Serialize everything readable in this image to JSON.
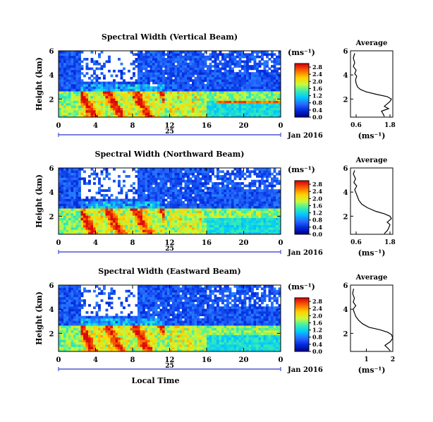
{
  "chart_data": [
    {
      "type": "heatmap",
      "title": "Spectral Width (Vertical Beam)",
      "ylabel": "Height (km)",
      "xlabel": "",
      "x_ticks": [
        "0",
        "4",
        "8",
        "12",
        "16",
        "20",
        "0"
      ],
      "x_sub_label": "25",
      "x_date_label": "Jan 2016",
      "y_ticks": [
        "2",
        "4",
        "6"
      ],
      "xlim_hours": [
        0,
        24
      ],
      "ylim_km": [
        0.5,
        6
      ],
      "colorbar": {
        "unit": "(ms⁻¹)",
        "ticks": [
          "0.0",
          "0.4",
          "0.8",
          "1.2",
          "1.6",
          "2.0",
          "2.4",
          "2.8"
        ],
        "range": [
          0.0,
          3.0
        ]
      },
      "seed": 11,
      "profile": {
        "title": "Average",
        "xlabel": "(ms⁻¹)",
        "x_ticks": [
          "0.6",
          "1.8"
        ],
        "x_tick_values": [
          0.6,
          1.8
        ],
        "xlim": [
          0.4,
          1.9
        ],
        "y_ticks": [
          "2",
          "4",
          "6"
        ],
        "ylim": [
          0.5,
          6
        ],
        "points": [
          [
            1.6,
            0.55
          ],
          [
            1.55,
            0.8
          ],
          [
            1.5,
            1.0
          ],
          [
            1.75,
            1.2
          ],
          [
            1.6,
            1.4
          ],
          [
            1.7,
            1.6
          ],
          [
            1.8,
            1.8
          ],
          [
            1.85,
            2.0
          ],
          [
            1.7,
            2.2
          ],
          [
            1.3,
            2.4
          ],
          [
            0.95,
            2.6
          ],
          [
            0.75,
            2.8
          ],
          [
            0.65,
            3.0
          ],
          [
            0.6,
            3.3
          ],
          [
            0.58,
            3.6
          ],
          [
            0.62,
            3.9
          ],
          [
            0.55,
            4.1
          ],
          [
            0.6,
            4.4
          ],
          [
            0.5,
            4.7
          ],
          [
            0.55,
            5.0
          ],
          [
            0.5,
            5.4
          ],
          [
            0.55,
            5.8
          ]
        ]
      }
    },
    {
      "type": "heatmap",
      "title": "Spectral Width (Northward Beam)",
      "ylabel": "Height (km)",
      "xlabel": "",
      "x_ticks": [
        "0",
        "4",
        "8",
        "12",
        "16",
        "20",
        "0"
      ],
      "x_sub_label": "25",
      "x_date_label": "Jan 2016",
      "y_ticks": [
        "2",
        "4",
        "6"
      ],
      "xlim_hours": [
        0,
        24
      ],
      "ylim_km": [
        0.5,
        6
      ],
      "colorbar": {
        "unit": "(ms⁻¹)",
        "ticks": [
          "0.0",
          "0.4",
          "0.8",
          "1.2",
          "1.6",
          "2.0",
          "2.4",
          "2.8"
        ],
        "range": [
          0.0,
          3.0
        ]
      },
      "seed": 23,
      "profile": {
        "title": "Average",
        "xlabel": "(ms⁻¹)",
        "x_ticks": [
          "0.6",
          "1.8"
        ],
        "x_tick_values": [
          0.6,
          1.8
        ],
        "xlim": [
          0.4,
          1.9
        ],
        "y_ticks": [
          "2",
          "4",
          "6"
        ],
        "ylim": [
          0.5,
          6
        ],
        "points": [
          [
            1.6,
            0.55
          ],
          [
            1.7,
            0.8
          ],
          [
            1.75,
            1.0
          ],
          [
            1.8,
            1.3
          ],
          [
            1.7,
            1.5
          ],
          [
            1.85,
            1.8
          ],
          [
            1.8,
            2.0
          ],
          [
            1.6,
            2.2
          ],
          [
            1.3,
            2.4
          ],
          [
            1.0,
            2.7
          ],
          [
            0.8,
            3.0
          ],
          [
            0.7,
            3.3
          ],
          [
            0.65,
            3.6
          ],
          [
            0.6,
            3.9
          ],
          [
            0.55,
            4.2
          ],
          [
            0.62,
            4.5
          ],
          [
            0.52,
            4.8
          ],
          [
            0.58,
            5.1
          ],
          [
            0.5,
            5.5
          ],
          [
            0.55,
            5.8
          ]
        ]
      }
    },
    {
      "type": "heatmap",
      "title": "Spectral Width (Eastward Beam)",
      "ylabel": "Height (km)",
      "xlabel": "Local Time",
      "x_ticks": [
        "0",
        "4",
        "8",
        "12",
        "16",
        "20",
        "0"
      ],
      "x_sub_label": "25",
      "x_date_label": "Jan 2016",
      "y_ticks": [
        "2",
        "4",
        "6"
      ],
      "xlim_hours": [
        0,
        24
      ],
      "ylim_km": [
        0.5,
        6
      ],
      "colorbar": {
        "unit": "(ms⁻¹)",
        "ticks": [
          "0.0",
          "0.4",
          "0.8",
          "1.2",
          "1.6",
          "2.0",
          "2.4",
          "2.8"
        ],
        "range": [
          0.0,
          3.0
        ]
      },
      "seed": 37,
      "profile": {
        "title": "Average",
        "xlabel": "(ms⁻¹)",
        "x_ticks": [
          "1",
          "2"
        ],
        "x_tick_values": [
          1,
          2
        ],
        "xlim": [
          0.4,
          2.0
        ],
        "y_ticks": [
          "2",
          "4",
          "6"
        ],
        "ylim": [
          0.5,
          6
        ],
        "points": [
          [
            1.9,
            0.55
          ],
          [
            1.8,
            0.8
          ],
          [
            1.7,
            1.0
          ],
          [
            1.9,
            1.3
          ],
          [
            2.0,
            1.6
          ],
          [
            1.95,
            1.9
          ],
          [
            1.8,
            2.1
          ],
          [
            1.5,
            2.3
          ],
          [
            1.1,
            2.5
          ],
          [
            0.85,
            2.8
          ],
          [
            0.7,
            3.1
          ],
          [
            0.6,
            3.4
          ],
          [
            0.55,
            3.7
          ],
          [
            0.5,
            4.0
          ],
          [
            0.6,
            4.3
          ],
          [
            0.5,
            4.6
          ],
          [
            0.55,
            4.9
          ],
          [
            0.48,
            5.3
          ],
          [
            0.52,
            5.7
          ]
        ]
      }
    }
  ]
}
